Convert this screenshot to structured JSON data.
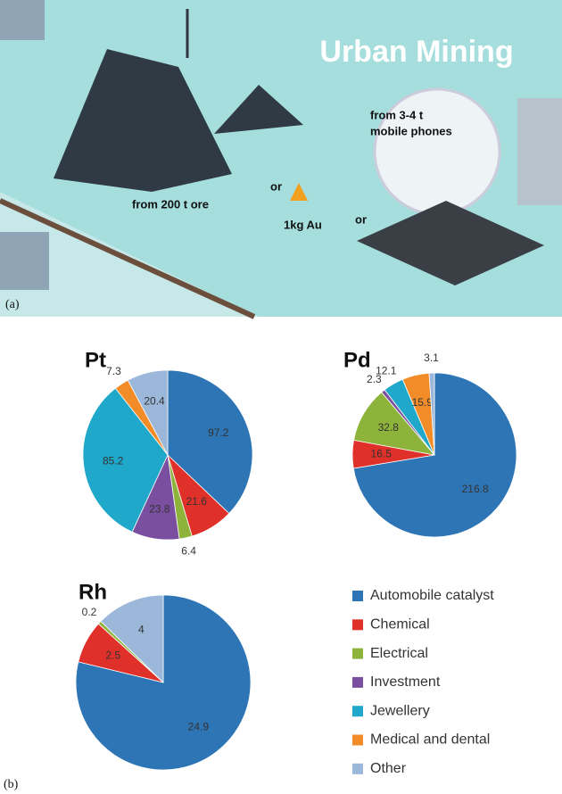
{
  "illustration": {
    "title": "Urban Mining",
    "phones_line1": "from 3-4 t",
    "phones_line2": "mobile phones",
    "ore": "from 200 t ore",
    "or_1": "or",
    "gold": "1kg Au",
    "or_2": "or",
    "panel_label": "(a)"
  },
  "panel_b_label": "(b)",
  "legend": {
    "labels": [
      "Automobile catalyst",
      "Chemical",
      "Electrical",
      "Investment",
      "Jewellery",
      "Medical and dental",
      "Other"
    ],
    "colors": [
      "#2e75b6",
      "#e0302a",
      "#8db33a",
      "#7b4fa0",
      "#1fa8c9",
      "#f28c28",
      "#9bb7d9"
    ]
  },
  "chart_data": [
    {
      "type": "pie",
      "title": "Pt",
      "values": [
        97.2,
        21.6,
        6.4,
        23.8,
        85.2,
        7.3,
        20.4
      ]
    },
    {
      "type": "pie",
      "title": "Pd",
      "values": [
        216.8,
        16.5,
        32.8,
        2.3,
        12.1,
        15.9,
        3.1
      ]
    },
    {
      "type": "pie",
      "title": "Rh",
      "values": [
        24.9,
        2.5,
        0.2,
        null,
        null,
        null,
        4
      ]
    }
  ]
}
